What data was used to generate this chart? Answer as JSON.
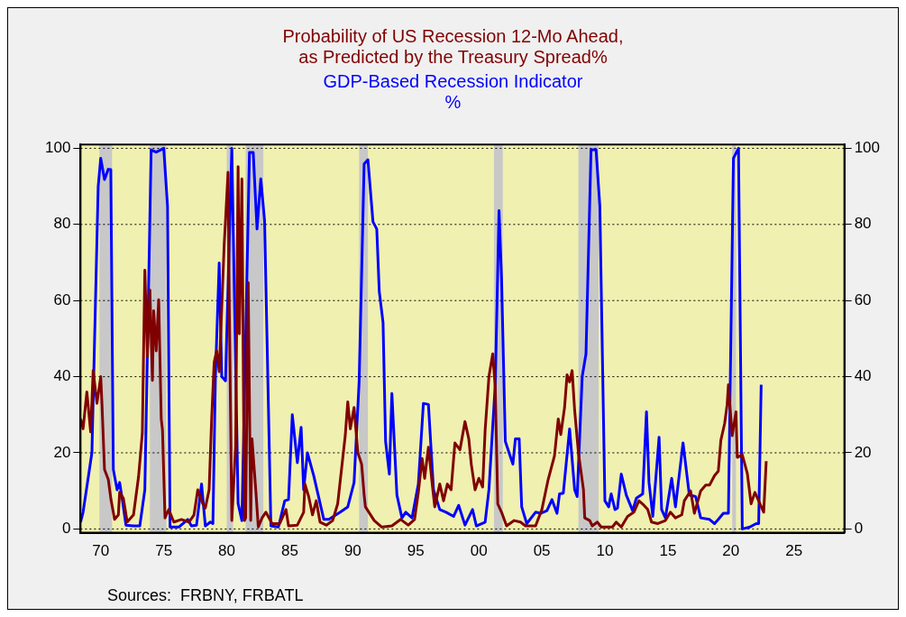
{
  "chart_data": {
    "type": "line",
    "xlim": [
      1968.4,
      2029
    ],
    "xticks": [
      {
        "value": 1970,
        "label": "70"
      },
      {
        "value": 1975,
        "label": "75"
      },
      {
        "value": 1980,
        "label": "80"
      },
      {
        "value": 1985,
        "label": "85"
      },
      {
        "value": 1990,
        "label": "90"
      },
      {
        "value": 1995,
        "label": "95"
      },
      {
        "value": 2000,
        "label": "00"
      },
      {
        "value": 2005,
        "label": "05"
      },
      {
        "value": 2010,
        "label": "10"
      },
      {
        "value": 2015,
        "label": "15"
      },
      {
        "value": 2020,
        "label": "20"
      },
      {
        "value": 2025,
        "label": "25"
      }
    ],
    "ylim": [
      -1,
      101
    ],
    "yticks": [
      0,
      20,
      40,
      60,
      80,
      100
    ],
    "y2lim": [
      -1,
      101
    ],
    "y2ticks": [
      0,
      20,
      40,
      60,
      80,
      100
    ],
    "grid": "y",
    "legend": "top",
    "line_style": "solid",
    "marker": "none",
    "bands": [
      {
        "axis": "x",
        "from": 1969.9,
        "to": 1970.9,
        "color": "#c8c8c8"
      },
      {
        "axis": "x",
        "from": 1973.9,
        "to": 1975.2,
        "color": "#c8c8c8"
      },
      {
        "axis": "x",
        "from": 1980.0,
        "to": 1980.5,
        "color": "#c8c8c8"
      },
      {
        "axis": "x",
        "from": 1981.5,
        "to": 1982.9,
        "color": "#c8c8c8"
      },
      {
        "axis": "x",
        "from": 1990.5,
        "to": 1991.2,
        "color": "#c8c8c8"
      },
      {
        "axis": "x",
        "from": 2001.2,
        "to": 2001.9,
        "color": "#c8c8c8"
      },
      {
        "axis": "x",
        "from": 2007.9,
        "to": 2009.5,
        "color": "#c8c8c8"
      },
      {
        "axis": "x",
        "from": 2020.1,
        "to": 2020.4,
        "color": "#c8c8c8"
      }
    ],
    "annotations": [
      "Sources:  FRBNY, FRBATL"
    ],
    "series": [
      {
        "name": "Probability of US Recession 12-Mo Ahead,\nas Predicted by the Treasury Spread%",
        "color": "#800000",
        "x": [
          1968.4,
          1968.6,
          1968.9,
          1969.2,
          1969.4,
          1969.7,
          1970.0,
          1970.1,
          1970.3,
          1970.6,
          1970.8,
          1971.1,
          1971.4,
          1971.5,
          1971.8,
          1972.1,
          1972.6,
          1973.0,
          1973.3,
          1973.5,
          1973.7,
          1973.9,
          1974.1,
          1974.2,
          1974.4,
          1974.6,
          1974.8,
          1974.9,
          1975.1,
          1975.4,
          1975.8,
          1976.4,
          1977.0,
          1977.4,
          1977.7,
          1978.1,
          1978.3,
          1978.6,
          1978.8,
          1979.0,
          1979.2,
          1979.4,
          1979.6,
          1979.8,
          1979.9,
          1980.1,
          1980.2,
          1980.4,
          1980.7,
          1980.9,
          1981.0,
          1981.2,
          1981.4,
          1981.5,
          1981.7,
          1981.9,
          1982.0,
          1982.3,
          1982.5,
          1982.8,
          1983.1,
          1983.6,
          1984.2,
          1984.7,
          1984.9,
          1985.6,
          1986.1,
          1986.2,
          1986.5,
          1986.8,
          1987.1,
          1987.4,
          1987.9,
          1988.4,
          1988.8,
          1989.4,
          1989.6,
          1989.8,
          1990.1,
          1990.4,
          1990.7,
          1990.9,
          1991.0,
          1991.7,
          1992.3,
          1993.1,
          1993.8,
          1994.4,
          1994.9,
          1995.2,
          1995.5,
          1995.7,
          1996.0,
          1996.3,
          1996.5,
          1996.9,
          1997.2,
          1997.5,
          1997.8,
          1998.1,
          1998.5,
          1998.9,
          1999.2,
          1999.4,
          1999.7,
          2000.0,
          2000.3,
          2000.5,
          2000.8,
          2001.1,
          2001.3,
          2001.5,
          2001.8,
          2002.2,
          2002.8,
          2003.3,
          2003.7,
          2004.5,
          2005.0,
          2005.5,
          2006.0,
          2006.3,
          2006.5,
          2006.8,
          2007.0,
          2007.2,
          2007.4,
          2007.6,
          2007.9,
          2008.3,
          2008.4,
          2008.8,
          2009.0,
          2009.4,
          2009.7,
          2010.6,
          2010.9,
          2011.3,
          2011.8,
          2012.3,
          2012.7,
          2013.1,
          2013.4,
          2013.7,
          2014.2,
          2014.8,
          2015.2,
          2015.6,
          2016.1,
          2016.3,
          2016.8,
          2017.1,
          2017.6,
          2018.0,
          2018.3,
          2018.7,
          2019.0,
          2019.2,
          2019.5,
          2019.7,
          2019.8,
          2020.1,
          2020.4,
          2020.5,
          2020.9,
          2021.3,
          2021.6,
          2021.9,
          2022.2,
          2022.6,
          2022.8
        ],
        "values": [
          28.9,
          26.3,
          36,
          25.5,
          41.6,
          33,
          40,
          32.7,
          15.6,
          13,
          8,
          2.5,
          3.7,
          9.6,
          8,
          1.8,
          3.7,
          13.7,
          25.1,
          68,
          45.3,
          62.8,
          39,
          57.3,
          46.8,
          60.2,
          28.9,
          26,
          2.9,
          5.1,
          1.8,
          2.5,
          1.8,
          3.7,
          10.3,
          6.6,
          5.5,
          10.3,
          28.9,
          43.8,
          46.8,
          41.3,
          58,
          75,
          81,
          93.7,
          58.5,
          2.2,
          21.5,
          95.2,
          51.3,
          92,
          2.2,
          2.9,
          64.7,
          2.2,
          23.7,
          10.3,
          0.5,
          2.9,
          4.4,
          1.4,
          1.4,
          5.1,
          0.8,
          1,
          4.4,
          11.8,
          8.5,
          3.7,
          7.4,
          1.8,
          1,
          2.2,
          6.6,
          24.5,
          33.4,
          26.3,
          31.9,
          20,
          17,
          8.9,
          5.8,
          2.2,
          0.5,
          0.8,
          2.5,
          1,
          2.5,
          9.6,
          18.5,
          13.3,
          21.5,
          11.8,
          5.8,
          11.8,
          7.4,
          11.8,
          10.3,
          22.6,
          20.8,
          28.2,
          23.7,
          17,
          10.3,
          13.3,
          11,
          26,
          40,
          46,
          37.2,
          6.6,
          4.4,
          0.8,
          2.2,
          1.8,
          0.8,
          0.8,
          5.1,
          13,
          19.2,
          28.9,
          24.8,
          31.9,
          40.5,
          38.6,
          41.6,
          31.2,
          20,
          10.3,
          2.9,
          2.2,
          0.8,
          1.8,
          0.5,
          0.5,
          1.8,
          0.5,
          3.3,
          4.4,
          7.4,
          6.2,
          5.1,
          1.8,
          1.4,
          2.2,
          4.4,
          2.9,
          3.7,
          7.4,
          10,
          4.1,
          10,
          11.5,
          11.5,
          14,
          15.2,
          23.3,
          27.7,
          32.7,
          37.9,
          24.5,
          30.8,
          18.8,
          19.5,
          14.6,
          6.6,
          9.6,
          7.4,
          4.4,
          17.8
        ]
      },
      {
        "name": "GDP-Based Recession Indicator\n%",
        "color": "#0000ff",
        "x": [
          1968.4,
          1968.6,
          1969.3,
          1969.8,
          1970.0,
          1970.3,
          1970.6,
          1970.8,
          1971.0,
          1971.3,
          1971.5,
          1971.7,
          1972.0,
          1972.6,
          1973.1,
          1973.5,
          1974.0,
          1974.4,
          1975.0,
          1975.3,
          1975.5,
          1976.2,
          1976.9,
          1977.2,
          1977.6,
          1978.0,
          1978.3,
          1978.7,
          1978.9,
          1979.1,
          1979.4,
          1979.6,
          1979.9,
          1980.4,
          1980.7,
          1980.9,
          1981.2,
          1981.8,
          1982.1,
          1982.4,
          1982.7,
          1983.0,
          1983.5,
          1984.1,
          1984.6,
          1984.9,
          1985.2,
          1985.6,
          1985.9,
          1986.1,
          1986.4,
          1986.9,
          1987.7,
          1988.1,
          1989.0,
          1989.6,
          1990.1,
          1990.5,
          1990.9,
          1991.2,
          1991.6,
          1991.9,
          1992.1,
          1992.4,
          1992.6,
          1992.9,
          1993.1,
          1993.5,
          1993.9,
          1994.2,
          1994.7,
          1995.2,
          1995.6,
          1996.0,
          1996.4,
          1996.9,
          1997.4,
          1998.0,
          1998.4,
          1998.9,
          1999.5,
          1999.8,
          2000.5,
          2000.8,
          2001.3,
          2001.6,
          2001.8,
          2002.1,
          2002.7,
          2002.9,
          2003.2,
          2003.4,
          2003.8,
          2004.5,
          2004.9,
          2005.4,
          2005.8,
          2006.2,
          2006.4,
          2006.7,
          2007.2,
          2007.6,
          2007.8,
          2008.2,
          2008.5,
          2008.9,
          2009.3,
          2009.6,
          2010.0,
          2010.3,
          2010.5,
          2010.8,
          2011.0,
          2011.3,
          2011.7,
          2012.2,
          2012.5,
          2013.0,
          2013.3,
          2013.5,
          2013.8,
          2014.3,
          2014.5,
          2014.8,
          2015.3,
          2015.6,
          2016.2,
          2016.7,
          2017.2,
          2017.6,
          2018.3,
          2018.7,
          2019.0,
          2019.4,
          2019.8,
          2020.2,
          2020.6,
          2020.9,
          2021.5,
          2022.0,
          2022.2,
          2022.4
        ],
        "values": [
          1.8,
          4.4,
          20,
          90,
          97.4,
          91.8,
          94.5,
          94.4,
          15.6,
          10.3,
          12.2,
          8,
          1,
          0.8,
          0.8,
          10.3,
          99.6,
          99,
          100,
          84.8,
          0.5,
          0.5,
          2.5,
          0.8,
          1,
          11.8,
          0.8,
          1.8,
          1.4,
          40,
          69.9,
          40,
          38.9,
          100,
          43.8,
          6.7,
          2.2,
          98.9,
          98.9,
          78.8,
          92,
          81,
          0.8,
          0.5,
          7.4,
          7.7,
          30,
          17.4,
          26.7,
          10.3,
          20,
          14,
          2.5,
          2.5,
          4.4,
          5.8,
          12.2,
          38.6,
          95.9,
          97,
          80.7,
          78.8,
          62.4,
          54.2,
          23,
          14.4,
          35.6,
          8.9,
          2.9,
          4.4,
          2.9,
          11.8,
          33,
          32.7,
          10.3,
          5.1,
          4.4,
          3.3,
          6.2,
          1,
          5.1,
          0.8,
          1.8,
          10.3,
          37.9,
          83.6,
          66.1,
          23,
          17,
          23.7,
          23.7,
          5.8,
          1.4,
          4.4,
          4.1,
          4.8,
          7.7,
          4.1,
          9.2,
          9.4,
          26.3,
          10.3,
          8.5,
          40,
          46,
          99.6,
          99.6,
          84.8,
          7.4,
          5.8,
          9.2,
          5.1,
          5.5,
          14.4,
          8.9,
          4.8,
          8.1,
          9.2,
          30.8,
          12.2,
          3.3,
          24.1,
          5.1,
          2.9,
          13.3,
          5.8,
          22.6,
          8.9,
          8.5,
          2.9,
          2.5,
          1.4,
          2.5,
          4.1,
          4.1,
          97.4,
          100,
          0,
          0.5,
          1.4,
          1.4,
          37.9
        ]
      }
    ]
  }
}
